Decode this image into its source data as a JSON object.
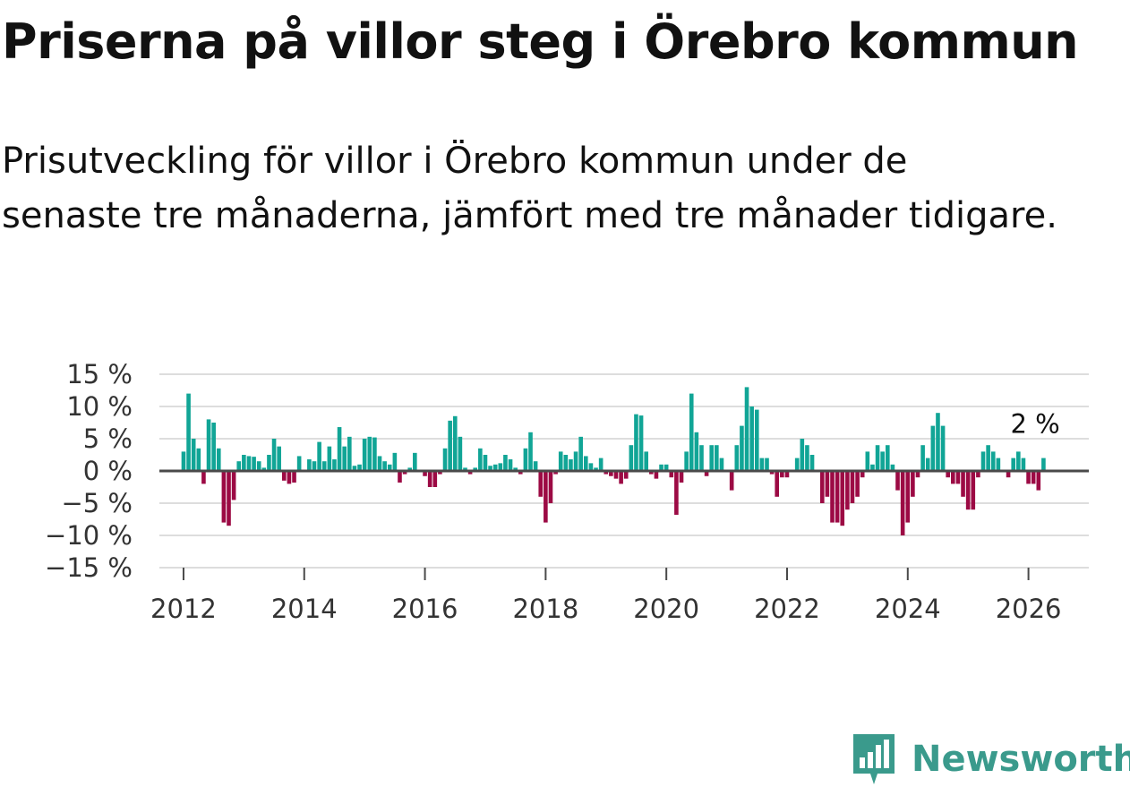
{
  "header": {
    "title": "Priserna på villor steg i Örebro kommun",
    "subtitle": "Prisutveckling för villor i Örebro kommun under de senaste tre månaderna, jämfört med tre månader tidigare."
  },
  "brand": {
    "name": "Newsworthy",
    "logo_icon": "newsworthy-bar-chart-icon",
    "color": "#3a9a8c"
  },
  "colors": {
    "positive": "#11a596",
    "negative": "#9c0a44",
    "zero_line": "#4a4a4a",
    "grid": "#dddddd",
    "text": "#111111",
    "tick_text": "#333333"
  },
  "chart_data": {
    "type": "bar",
    "title": "Priserna på villor steg i Örebro kommun",
    "xlabel": "",
    "ylabel": "",
    "ylim": [
      -15,
      15
    ],
    "xlim": [
      2011.6,
      2027.0
    ],
    "y_ticks": [
      15,
      10,
      5,
      0,
      -5,
      -10,
      -15
    ],
    "y_tick_labels": [
      "15 %",
      "10 %",
      "5 %",
      "0 %",
      "−5 %",
      "−10 %",
      "−15 %"
    ],
    "x_ticks": [
      2012,
      2014,
      2016,
      2018,
      2020,
      2022,
      2024,
      2026
    ],
    "x_tick_labels": [
      "2012",
      "2014",
      "2016",
      "2018",
      "2020",
      "2022",
      "2024",
      "2026"
    ],
    "grid": true,
    "unit": "%",
    "start": 2012.0,
    "step_years": 0.08333,
    "annotation": {
      "label": "2 %",
      "x": 2026.17,
      "y": 2
    },
    "series": [
      {
        "name": "Prisutveckling",
        "values": [
          3,
          12,
          5,
          3.5,
          -2,
          8,
          7.5,
          3.5,
          -8,
          -8.5,
          -4.5,
          1.5,
          2.5,
          2.3,
          2.2,
          1.5,
          0.5,
          2.5,
          5,
          3.8,
          -1.5,
          -2,
          -1.8,
          2.3,
          0,
          1.8,
          1.5,
          4.5,
          1.5,
          3.8,
          1.8,
          6.8,
          3.8,
          5.3,
          0.8,
          1,
          5,
          5.3,
          5.2,
          2.3,
          1.5,
          1,
          2.8,
          -1.8,
          -0.5,
          0.5,
          2.8,
          0,
          -0.8,
          -2.5,
          -2.5,
          -0.5,
          3.5,
          7.8,
          8.5,
          5.3,
          0.5,
          -0.5,
          0.5,
          3.5,
          2.5,
          0.8,
          1,
          1.2,
          2.5,
          1.8,
          0.5,
          -0.5,
          3.5,
          6,
          1.5,
          -4,
          -8,
          -5,
          -0.5,
          3,
          2.5,
          1.8,
          3,
          5.3,
          2.3,
          1.2,
          0.5,
          2,
          -0.5,
          -0.8,
          -1.2,
          -2,
          -1.2,
          4,
          8.8,
          8.6,
          3,
          -0.5,
          -1.2,
          1,
          1,
          -1,
          -6.8,
          -1.8,
          3,
          12,
          6,
          4,
          -0.8,
          4,
          4,
          2,
          0,
          -3,
          4,
          7,
          13,
          10,
          9.5,
          2,
          2,
          -0.5,
          -4,
          -1,
          -1,
          0,
          2,
          5,
          4,
          2.5,
          0,
          -5,
          -4,
          -8,
          -8,
          -8.5,
          -6,
          -5,
          -4,
          -1,
          3,
          1,
          4,
          3,
          4,
          1,
          -3,
          -10,
          -8,
          -4,
          -1,
          4,
          2,
          7,
          9,
          7,
          -1,
          -2,
          -2,
          -4,
          -6,
          -6,
          -1,
          3,
          4,
          3,
          2,
          0,
          -1,
          2,
          3,
          2,
          -2,
          -2,
          -3,
          2
        ]
      }
    ]
  }
}
